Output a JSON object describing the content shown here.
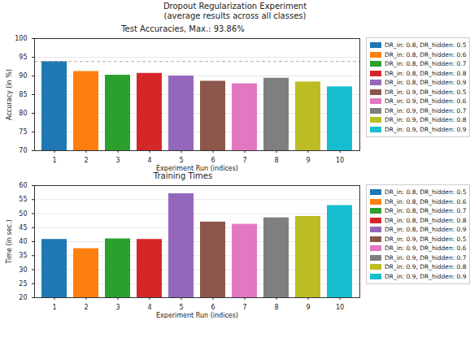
{
  "title": "Dropout Regularization Experiment",
  "subtitle": "(average results across all classes)",
  "chart_data": [
    {
      "type": "bar",
      "title": "Test Accuracies, Max.: 93.86%",
      "x_label": "Experiment Run (indices)",
      "y_label": "Accuracy (in %)",
      "categories": [
        "1",
        "2",
        "3",
        "4",
        "5",
        "6",
        "7",
        "8",
        "9",
        "10"
      ],
      "values": [
        93.86,
        91.2,
        90.2,
        90.7,
        90.0,
        88.6,
        87.9,
        89.4,
        88.4,
        87.1
      ],
      "colors": [
        "#1f77b4",
        "#ff7f0e",
        "#2ca02c",
        "#d62728",
        "#9467bd",
        "#8c564b",
        "#e377c2",
        "#7f7f7f",
        "#bcbd22",
        "#17becf"
      ],
      "legend_labels": [
        "DR_in: 0.8, DR_hidden: 0.5",
        "DR_in: 0.8, DR_hidden: 0.6",
        "DR_in: 0.8, DR_hidden: 0.7",
        "DR_in: 0.8, DR_hidden: 0.8",
        "DR_in: 0.8, DR_hidden: 0.9",
        "DR_in: 0.9, DR_hidden: 0.5",
        "DR_in: 0.9, DR_hidden: 0.6",
        "DR_in: 0.9, DR_hidden: 0.7",
        "DR_in: 0.9, DR_hidden: 0.8",
        "DR_in: 0.9, DR_hidden: 0.9"
      ],
      "reference_line": 93.86,
      "ylim": [
        70,
        100
      ],
      "yticks": [
        70,
        75,
        80,
        85,
        90,
        95,
        100
      ],
      "grid": true,
      "legend": "right"
    },
    {
      "type": "bar",
      "title": "Training Times",
      "x_label": "Experiment Run (indices)",
      "y_label": "Time (in sec.)",
      "categories": [
        "1",
        "2",
        "3",
        "4",
        "5",
        "6",
        "7",
        "8",
        "9",
        "10"
      ],
      "values": [
        40.8,
        37.5,
        41.0,
        40.8,
        57.1,
        47.0,
        46.2,
        48.5,
        49.0,
        52.9
      ],
      "colors": [
        "#1f77b4",
        "#ff7f0e",
        "#2ca02c",
        "#d62728",
        "#9467bd",
        "#8c564b",
        "#e377c2",
        "#7f7f7f",
        "#bcbd22",
        "#17becf"
      ],
      "legend_labels": [
        "DR_in: 0.8, DR_hidden: 0.5",
        "DR_in: 0.8, DR_hidden: 0.6",
        "DR_in: 0.8, DR_hidden: 0.7",
        "DR_in: 0.8, DR_hidden: 0.8",
        "DR_in: 0.8, DR_hidden: 0.9",
        "DR_in: 0.9, DR_hidden: 0.5",
        "DR_in: 0.9, DR_hidden: 0.6",
        "DR_in: 0.9, DR_hidden: 0.7",
        "DR_in: 0.9, DR_hidden: 0.8",
        "DR_in: 0.9, DR_hidden: 0.9"
      ],
      "ylim": [
        20,
        60
      ],
      "yticks": [
        20,
        25,
        30,
        35,
        40,
        45,
        50,
        55,
        60
      ],
      "grid": true,
      "legend": "right"
    }
  ]
}
